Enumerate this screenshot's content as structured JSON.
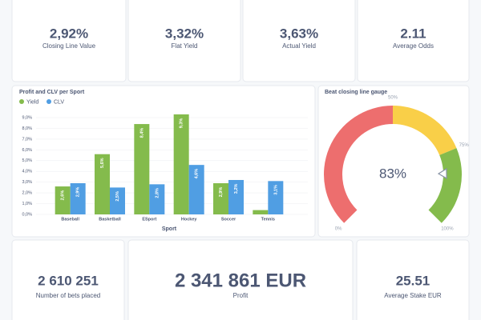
{
  "kpis": [
    {
      "value": "2,92%",
      "label": "Closing Line Value"
    },
    {
      "value": "3,32%",
      "label": "Flat Yield"
    },
    {
      "value": "3,63%",
      "label": "Actual Yield"
    },
    {
      "value": "2.11",
      "label": "Average Odds"
    }
  ],
  "summary": [
    {
      "value": "2 610 251",
      "label": "Number of bets placed"
    },
    {
      "value": "2 341 861 EUR",
      "label": "Profit"
    },
    {
      "value": "25.51",
      "label": "Average Stake EUR"
    }
  ],
  "chart_data": [
    {
      "type": "bar",
      "title": "Profit and CLV per Sport",
      "x_label": "Sport",
      "categories": [
        "Baseball",
        "Basketball",
        "ESport",
        "Hockey",
        "Soccer",
        "Tennis"
      ],
      "series": [
        {
          "name": "Yield",
          "color": "#84bb4c",
          "values": [
            2.6,
            5.6,
            8.4,
            9.3,
            2.9,
            0.4
          ],
          "value_labels": [
            "2,6%",
            "5,6%",
            "8,4%",
            "9,3%",
            "2,9%",
            null
          ]
        },
        {
          "name": "CLV",
          "color": "#509ee3",
          "values": [
            2.9,
            2.5,
            2.8,
            4.6,
            3.2,
            3.1
          ],
          "value_labels": [
            "2,9%",
            "2,5%",
            "2,8%",
            "4,6%",
            "3,2%",
            "3,1%"
          ]
        }
      ],
      "ylim": [
        0,
        9
      ],
      "yticks": [
        {
          "value": 0,
          "label": "0,0%"
        },
        {
          "value": 1,
          "label": "1,0%"
        },
        {
          "value": 2,
          "label": "2,0%"
        },
        {
          "value": 3,
          "label": "3,0%"
        },
        {
          "value": 4,
          "label": "4,0%"
        },
        {
          "value": 5,
          "label": "5,0%"
        },
        {
          "value": 6,
          "label": "6,0%"
        },
        {
          "value": 7,
          "label": "7,0%"
        },
        {
          "value": 8,
          "label": "8,0%"
        },
        {
          "value": 9,
          "label": "9,0%"
        }
      ],
      "grid": true
    },
    {
      "type": "gauge",
      "title": "Beat closing line gauge",
      "value": 83,
      "value_label": "83%",
      "ylim": [
        0,
        100
      ],
      "ranges": [
        {
          "from": 0,
          "to": 50,
          "color": "#ed6e6e"
        },
        {
          "from": 50,
          "to": 75,
          "color": "#f9cf48"
        },
        {
          "from": 75,
          "to": 100,
          "color": "#84bb4c"
        }
      ],
      "yticks": [
        {
          "value": 0,
          "label": "0%"
        },
        {
          "value": 50,
          "label": "50%"
        },
        {
          "value": 75,
          "label": "75%"
        },
        {
          "value": 100,
          "label": "100%"
        }
      ]
    }
  ]
}
